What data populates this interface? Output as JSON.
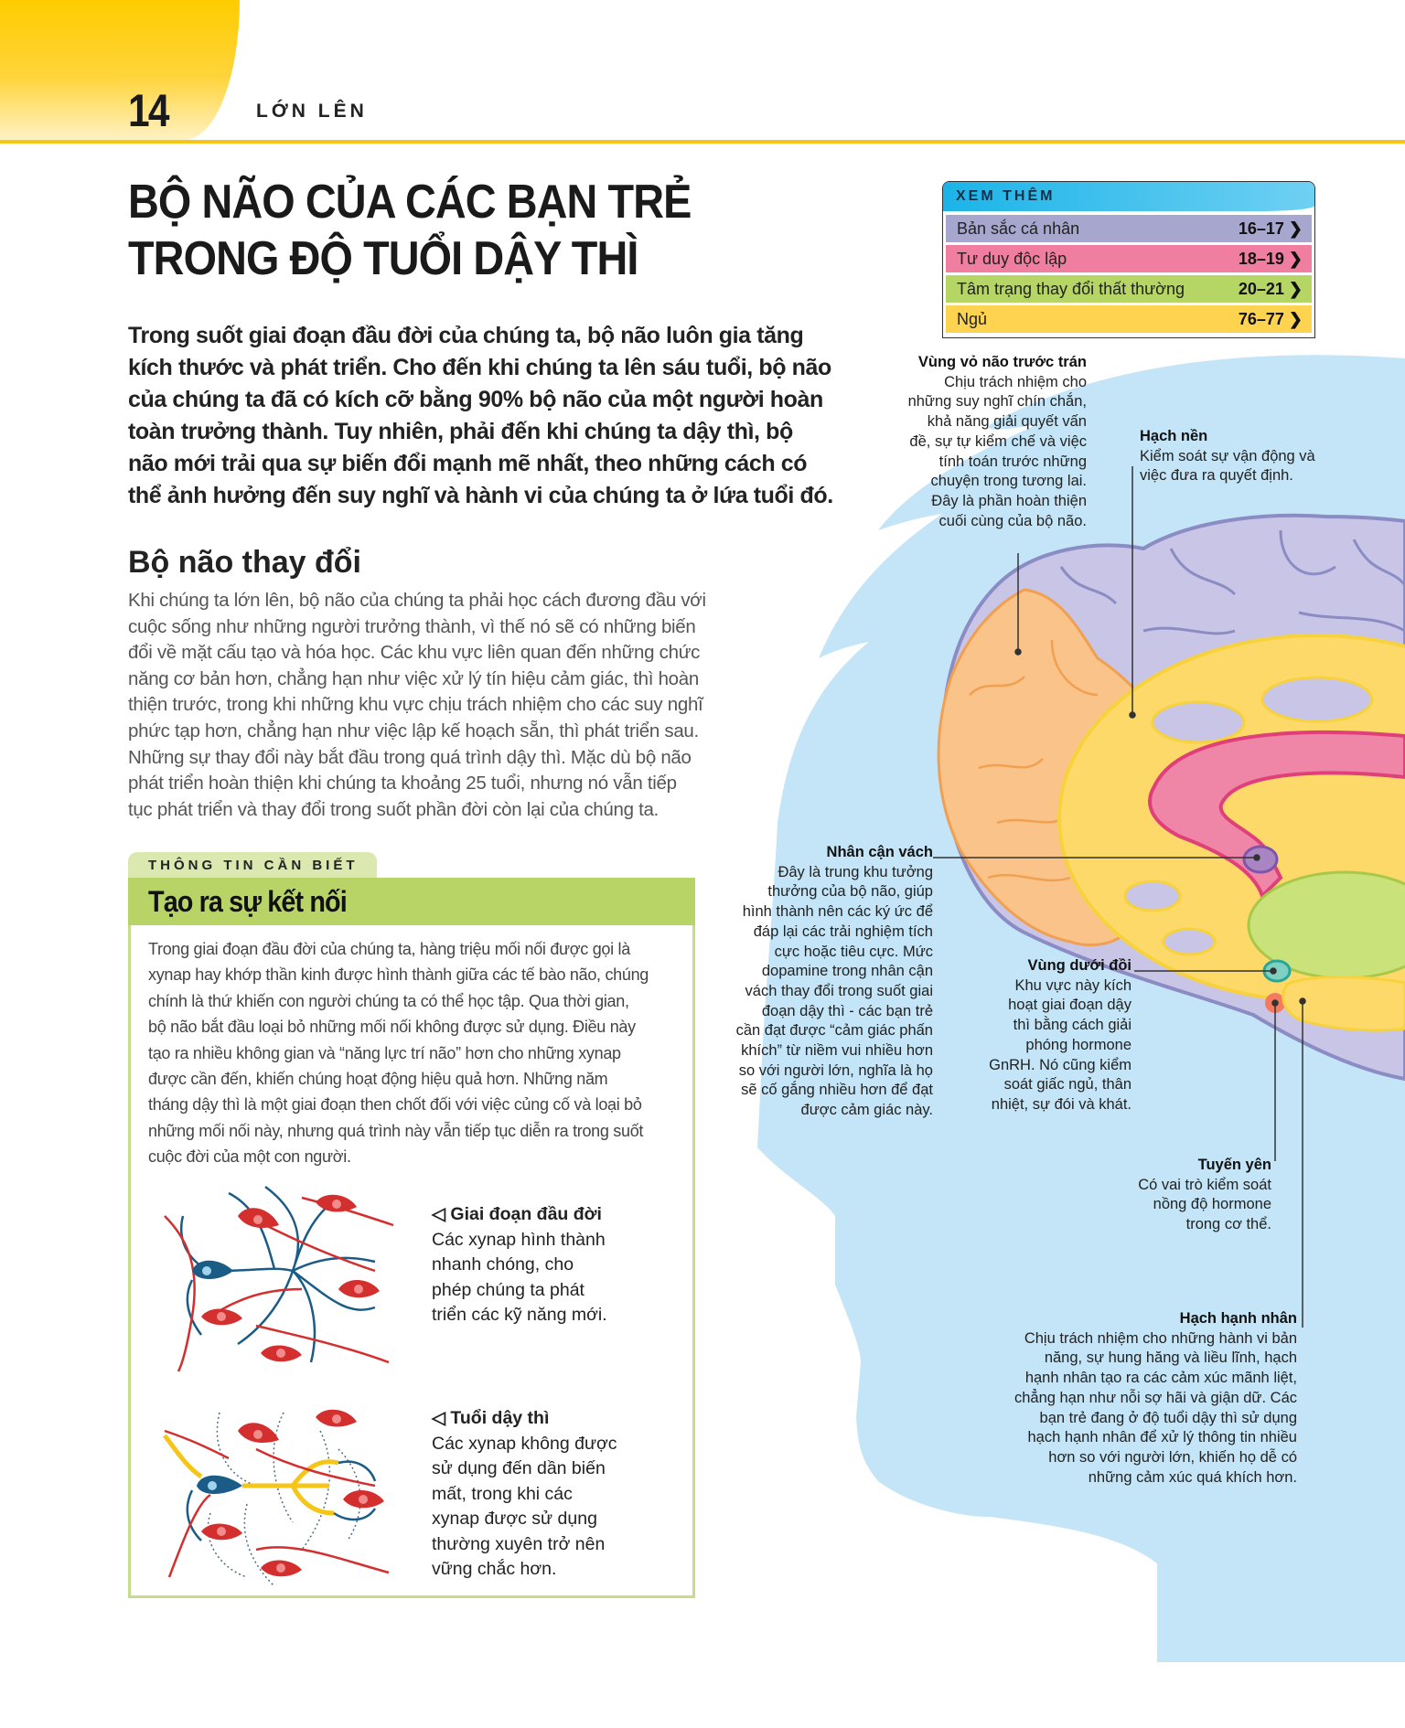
{
  "header": {
    "page_number": "14",
    "section": "LỚN LÊN"
  },
  "title": "BỘ NÃO CỦA CÁC BẠN TRẺ\nTRONG ĐỘ TUỔI DẬY THÌ",
  "intro": "Trong suốt giai đoạn đầu đời của chúng ta, bộ não luôn gia tăng\nkích thước và phát triển. Cho đến khi chúng ta lên sáu tuổi, bộ não\ncủa chúng ta đã có kích cỡ bằng 90% bộ não của một người hoàn\ntoàn trưởng thành. Tuy nhiên, phải đến khi chúng ta dậy thì, bộ\nnão mới trải qua sự biến đổi mạnh mẽ nhất, theo những cách có\nthể ảnh hưởng đến suy nghĩ và hành vi của chúng ta ở lứa tuổi đó.",
  "section_heading": "Bộ não thay đổi",
  "section_body": "Khi chúng ta lớn lên, bộ não của chúng ta phải học cách đương đầu với\ncuộc sống như những người trưởng thành, vì thế nó sẽ có những biến\nđổi về mặt cấu tạo và hóa học. Các khu vực liên quan đến những chức\nnăng cơ bản hơn, chẳng hạn như việc xử lý tín hiệu cảm giác, thì hoàn\nthiện trước, trong khi những khu vực chịu trách nhiệm cho các suy nghĩ\nphức tạp hơn, chẳng hạn như việc lập kế hoạch sẵn, thì phát triển sau.\nNhững sự thay đổi này bắt đầu trong quá trình dậy thì. Mặc dù bộ não\nphát triển hoàn thiện khi chúng ta khoảng 25 tuổi, nhưng nó vẫn tiếp\ntục phát triển và thay đổi trong suốt phần đời còn lại của chúng ta.",
  "see_also": {
    "heading": "XEM THÊM",
    "items": [
      {
        "label": "Bản sắc cá nhân",
        "pages": "16–17 ❯",
        "color": "#a7a6cf"
      },
      {
        "label": "Tư duy độc lập",
        "pages": "18–19 ❯",
        "color": "#f07ea0"
      },
      {
        "label": "Tâm trạng thay đổi thất thường",
        "pages": "20–21 ❯",
        "color": "#b5d564"
      },
      {
        "label": "Ngủ",
        "pages": "76–77 ❯",
        "color": "#fdd34f"
      }
    ]
  },
  "info_box": {
    "tab": "THÔNG TIN CẦN BIẾT",
    "heading": "Tạo ra sự kết nối",
    "body": "Trong giai đoạn đầu đời của chúng ta, hàng triệu mối nối được gọi là\nxynap hay khớp thần kinh được hình thành giữa các tế bào não, chúng\nchính là thứ khiến con người chúng ta có thể học tập. Qua thời gian,\nbộ não bắt đầu loại bỏ những mối nối không được sử dụng. Điều này\ntạo ra nhiều không gian và “năng lực trí não” hơn cho những xynap\nđược cần đến, khiến chúng hoạt động hiệu quả hơn. Những năm\ntháng dậy thì là một giai đoạn then chốt đối với việc củng cố và loại bỏ\nnhững mối nối này, nhưng quá trình này vẫn tiếp tục diễn ra trong suốt\ncuộc đời của một con người.",
    "captions": [
      {
        "title": "◁ Giai đoạn đầu đời",
        "text": "Các xynap hình thành\nnhanh chóng, cho\nphép chúng ta phát\ntriển các kỹ năng mới."
      },
      {
        "title": "◁ Tuổi dậy thì",
        "text": "Các xynap không được\nsử dụng đến dần biến\nmất, trong khi các\nxynap được sử dụng\nthường xuyên trở nên\nvững chắc hơn."
      }
    ]
  },
  "brain_labels": {
    "prefrontal": {
      "title": "Vùng vỏ não trước trán",
      "text": "Chịu trách nhiệm cho\nnhững suy nghĩ chín chắn,\nkhả năng giải quyết vấn\nđề, sự tự kiểm chế và việc\ntính toán trước những\nchuyện trong tương lai.\nĐây là phần hoàn thiện\ncuối cùng của bộ não."
    },
    "basal_ganglia": {
      "title": "Hạch nền",
      "text": "Kiểm soát sự vận động và\nviệc đưa ra quyết định."
    },
    "nucleus_accumbens": {
      "title": "Nhân cận vách",
      "text": "Đây là trung khu tưởng\nthưởng của bộ não, giúp\nhình thành nên các ký ức để\nđáp lại các trải nghiệm tích\ncực hoặc tiêu cực. Mức\ndopamine trong nhân cận\nvách thay đổi trong suốt giai\nđoạn dậy thì - các bạn trẻ\ncần đạt được “cảm giác phấn\nkhích” từ niềm vui nhiều hơn\nso với người lớn, nghĩa là họ\nsẽ cố gắng nhiều hơn để đạt\nđược cảm giác này."
    },
    "hypothalamus": {
      "title": "Vùng dưới đồi",
      "text": "Khu vực này kích\nhoạt giai đoạn dậy\nthì bằng cách giải\nphóng hormone\nGnRH. Nó cũng kiểm\nsoát giấc ngủ, thân\nnhiệt, sự đói và khát."
    },
    "pituitary": {
      "title": "Tuyến yên",
      "text": "Có vai trò kiểm soát\nnồng độ hormone\ntrong cơ thể."
    },
    "amygdala": {
      "title": "Hạch hạnh nhân",
      "text": "Chịu trách nhiệm cho những hành vi bản\nnăng, sự hung hăng và liều lĩnh, hạch\nhạnh nhân tạo ra các cảm xúc mãnh liệt,\nchẳng hạn như nỗi sợ hãi và giận dữ. Các\nbạn trẻ đang ở độ tuổi dậy thì sử dụng\nhạch hạnh nhân để xử lý thông tin nhiều\nhơn so với người lớn, khiến họ dễ có\nnhững cảm xúc quá khích hơn."
    }
  },
  "colors": {
    "accent_yellow": "#ffcc00",
    "head": "#c3e5f7",
    "cortex": "#c8c5e6",
    "prefrontal": "#f9c38a",
    "basal_ganglia": "#fdd96a",
    "corpus": "#ef86a8",
    "thalamus": "#c9e27a",
    "box_green": "#b9d466"
  }
}
